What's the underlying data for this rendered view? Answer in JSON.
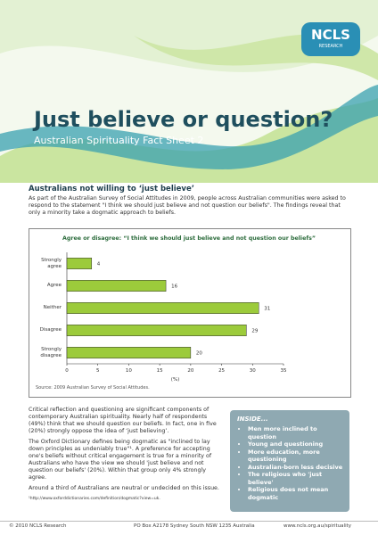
{
  "header": {
    "logo": "NCLS",
    "logo_sub": "RESEARCH",
    "title": "Just believe or question?",
    "subtitle": "Australian Spirituality Fact Sheet 2"
  },
  "section": {
    "heading": "Australians not willing to ‘just believe’",
    "intro": "As part of the Australian Survey of Social Attitudes in 2009, people across Australian communities were asked to respond to the statement \"I think we should just believe and not question our beliefs\". The findings reveal that only a minority take a dogmatic approach to beliefs."
  },
  "chart_data": {
    "type": "hbar",
    "title": "Agree or disagree: “I think we should just believe and not question our beliefs”",
    "categories": [
      "Strongly agree",
      "Agree",
      "Neither",
      "Disagree",
      "Strongly disagree"
    ],
    "values": [
      4,
      16,
      31,
      29,
      20
    ],
    "color": "#9ccb3b",
    "xlim": [
      0,
      35
    ],
    "xticks": [
      0,
      5,
      10,
      15,
      20,
      25,
      30,
      35
    ],
    "xlabel": "(%)",
    "source": "Source: 2009 Australian Survey of Social Attitudes."
  },
  "body": {
    "paragraphs": [
      "Critical reflection and questioning are significant components of contemporary Australian spirituality. Nearly half of respondents (49%) think that we should question our beliefs. In fact, one in five (20%) strongly oppose the idea of ‘just believing’.",
      "The Oxford Dictionary defines being dogmatic as \"inclined to lay down principles as undeniably true\"¹. A preference for accepting one's beliefs without critical engagement is true for a minority of Australians who have the view we should 'just believe and not question our beliefs' (20%). Within that group only 4% strongly agree.",
      "Around a third of Australians are neutral or undecided on this issue."
    ],
    "footnote": "¹http://www.oxforddictionaries.com/definition/dogmatic?view=uk."
  },
  "inside": {
    "title": "INSIDE...",
    "items": [
      "Men more inclined to question",
      "Young and questioning",
      "More education, more questioning",
      "Australian-born less decisive",
      "The religious who 'just believe'",
      "Religious does not mean dogmatic"
    ]
  },
  "footer": {
    "left": "© 2010 NCLS Research",
    "center": "PO Box A2178 Sydney South NSW 1235 Australia",
    "right": "www.ncls.org.au/spirituality"
  }
}
